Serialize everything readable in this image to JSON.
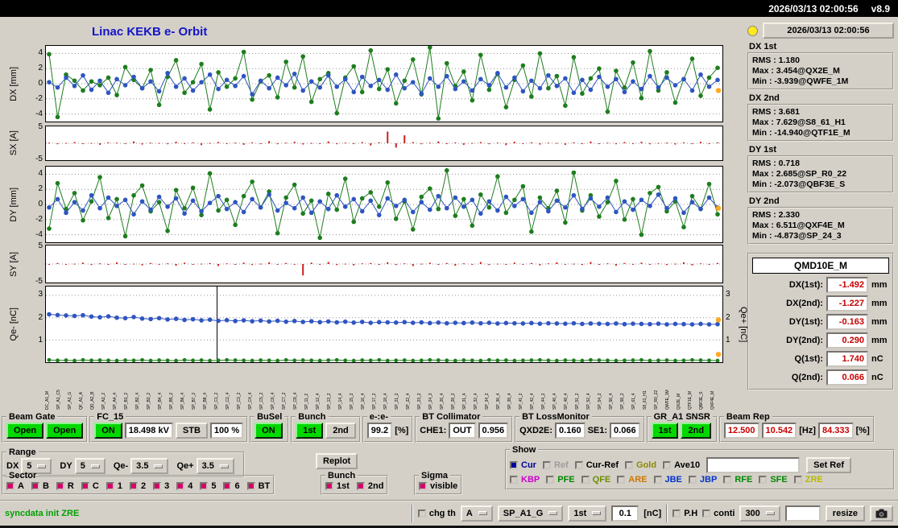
{
  "colors": {
    "green_btn": "#00d800",
    "magenta_check": "#d6006a",
    "value_red": "#c80000",
    "title_blue": "#1414c8",
    "status_green": "#00a000",
    "indicator_yellow": "#ffe81e"
  },
  "titlebar": {
    "datetime": "2026/03/13 02:00:56",
    "version": "v8.9"
  },
  "header": {
    "title": "Linac KEKB e- Orbit",
    "timestamp": "2026/03/13 02:00:56"
  },
  "stats_boxes": [
    {
      "title": "DX 1st",
      "lines": [
        "RMS : 1.180",
        "Max : 3.454@QX2E_M",
        "Min : -3.939@QWFE_1M"
      ]
    },
    {
      "title": "DX 2nd",
      "lines": [
        "RMS : 3.681",
        "Max : 7.629@S8_61_H1",
        "Min : -14.940@QTF1E_M"
      ]
    },
    {
      "title": "DY 1st",
      "lines": [
        "RMS : 0.718",
        "Max : 2.685@SP_R0_22",
        "Min : -2.073@QBF3E_S"
      ]
    },
    {
      "title": "DY 2nd",
      "lines": [
        "RMS : 2.330",
        "Max : 6.511@QXF4E_M",
        "Min : -4.873@SP_24_3"
      ]
    }
  ],
  "monitor": {
    "name": "QMD10E_M",
    "rows": [
      {
        "label": "DX(1st):",
        "value": "-1.492",
        "unit": "mm"
      },
      {
        "label": "DX(2nd):",
        "value": "-1.227",
        "unit": "mm"
      },
      {
        "label": "DY(1st):",
        "value": "-0.163",
        "unit": "mm"
      },
      {
        "label": "DY(2nd):",
        "value": "0.290",
        "unit": "mm"
      },
      {
        "label": "Q(1st):",
        "value": "1.740",
        "unit": "nC"
      },
      {
        "label": "Q(2nd):",
        "value": "0.066",
        "unit": "nC"
      }
    ]
  },
  "groups": {
    "beam_gate": {
      "title": "Beam Gate",
      "buttons": [
        "Open",
        "Open"
      ]
    },
    "fc15": {
      "title": "FC_15",
      "on": "ON",
      "kv": "18.498 kV",
      "stb": "STB",
      "pct": "100 %"
    },
    "busel": {
      "title": "BuSel",
      "on": "ON"
    },
    "bunch_top": {
      "title": "Bunch",
      "b1": "1st",
      "b2": "2nd"
    },
    "ee": {
      "title": "e-:e-",
      "value": "99.2",
      "unit": "[%]"
    },
    "bt_coll": {
      "title": "BT Collimator",
      "label": "CHE1:",
      "state": "OUT",
      "value": "0.956"
    },
    "bt_loss": {
      "title": "BT LossMonitor",
      "l1": "QXD2E:",
      "v1": "0.160",
      "l2": "SE1:",
      "v2": "0.066"
    },
    "gr_snsr": {
      "title": "GR_A1 SNSR",
      "b1": "1st",
      "b2": "2nd"
    },
    "beam_rep": {
      "title": "Beam Rep",
      "v1": "12.500",
      "v2": "10.542",
      "u1": "[Hz]",
      "v3": "84.333",
      "u2": "[%]"
    }
  },
  "range": {
    "title": "Range",
    "items": [
      {
        "label": "DX",
        "value": "5"
      },
      {
        "label": "DY",
        "value": "5"
      },
      {
        "label": "Qe-",
        "value": "3.5"
      },
      {
        "label": "Qe+",
        "value": "3.5"
      }
    ],
    "replot": "Replot"
  },
  "show": {
    "title": "Show",
    "set_ref": "Set Ref",
    "row1": [
      {
        "label": "Cur",
        "color": "#00009c",
        "ind": "#00009c"
      },
      {
        "label": "Ref",
        "color": "#9c9c9c",
        "ind": "#d4d0c8"
      },
      {
        "label": "Cur-Ref",
        "color": "#000000",
        "ind": "#d4d0c8"
      },
      {
        "label": "Gold",
        "color": "#8b8b00",
        "ind": "#d4d0c8"
      },
      {
        "label": "Ave10",
        "color": "#000000",
        "ind": "#d4d0c8"
      }
    ],
    "row2": [
      {
        "label": "KBP",
        "color": "#cc00cc"
      },
      {
        "label": "PFE",
        "color": "#008800"
      },
      {
        "label": "QFE",
        "color": "#6b8e00"
      },
      {
        "label": "ARE",
        "color": "#cc7700"
      },
      {
        "label": "JBE",
        "color": "#0033cc"
      },
      {
        "label": "JBP",
        "color": "#0033cc"
      },
      {
        "label": "RFE",
        "color": "#008800"
      },
      {
        "label": "SFE",
        "color": "#008800"
      },
      {
        "label": "ZRE",
        "color": "#b8b800"
      }
    ]
  },
  "sector": {
    "title": "Sector",
    "items": [
      "A",
      "B",
      "R",
      "C",
      "1",
      "2",
      "3",
      "4",
      "5",
      "6",
      "BT"
    ]
  },
  "bunch_bottom": {
    "title": "Bunch",
    "items": [
      "1st",
      "2nd"
    ]
  },
  "sigma": {
    "title": "Sigma",
    "items": [
      "visible"
    ]
  },
  "statusbar": {
    "message": "syncdata init ZRE",
    "chg_th": "chg th",
    "sel1": "A",
    "sel2": "SP_A1_G",
    "sel3": "1st",
    "th_value": "0.1",
    "th_unit": "[nC]",
    "ph": "P.H",
    "conti": "conti",
    "sel4": "300",
    "resize": "resize"
  },
  "chart_data": [
    {
      "name": "dx",
      "type": "line-scatter",
      "ylabel": "DX [mm]",
      "ylim": [
        -5,
        5
      ],
      "yticks": [
        4,
        2,
        0,
        -2,
        -4
      ],
      "grid": [
        4,
        2,
        0,
        -2,
        -4
      ],
      "series": [
        {
          "name": "2nd",
          "color": "#1e7d1e",
          "line": true,
          "r": 2.8,
          "values": [
            3.9,
            -4.4,
            1.2,
            0.4,
            -0.9,
            0.3,
            -0.2,
            0.8,
            -1.5,
            2.2,
            0.5,
            -0.6,
            1.8,
            -2.8,
            0.9,
            3.1,
            -1.2,
            0.2,
            2.6,
            -3.4,
            1.5,
            -0.4,
            0.7,
            4.2,
            -2.1,
            0.3,
            1.1,
            -1.8,
            2.9,
            -0.5,
            3.6,
            -2.4,
            0.6,
            1.4,
            -3.9,
            0.8,
            2.3,
            -1.1,
            4.4,
            -0.7,
            1.9,
            -2.6,
            0.4,
            3.2,
            -1.4,
            4.8,
            -4.6,
            2.7,
            -0.3,
            1.6,
            -2.2,
            3.8,
            -0.8,
            1.3,
            -3.1,
            0.5,
            2.4,
            -1.7,
            4.0,
            -0.6,
            1.0,
            -2.9,
            3.5,
            -1.3,
            0.7,
            2.0,
            -3.7,
            1.7,
            -0.5,
            2.8,
            -1.9,
            4.3,
            -0.9,
            1.5,
            -2.5,
            0.6,
            3.3,
            -1.6,
            0.8,
            2.1
          ]
        },
        {
          "name": "1st",
          "color": "#2f55c0",
          "line": true,
          "r": 2.8,
          "values": [
            0.2,
            -0.5,
            0.8,
            -0.3,
            1.1,
            -0.8,
            0.4,
            -1.2,
            0.6,
            -0.2,
            0.9,
            -0.6,
            0.3,
            -1.0,
            1.4,
            -0.4,
            0.7,
            -0.9,
            0.2,
            1.2,
            -0.7,
            0.5,
            -0.3,
            1.0,
            -1.4,
            0.4,
            -0.6,
            0.8,
            -0.2,
            1.3,
            -0.9,
            0.3,
            -0.5,
            1.1,
            -0.4,
            0.6,
            -1.1,
            0.9,
            -0.3,
            0.5,
            -0.8,
            1.2,
            -0.6,
            0.2,
            -1.3,
            0.7,
            -0.4,
            1.0,
            -0.7,
            0.3,
            -0.9,
            0.6,
            -0.2,
            1.4,
            -0.5,
            0.8,
            -1.0,
            0.4,
            -0.6,
            1.1,
            -0.3,
            0.7,
            -1.2,
            0.5,
            -0.8,
            0.9,
            -0.4,
            0.6,
            -1.1,
            0.3,
            -0.7,
            1.0,
            -0.5,
            0.8,
            -0.2,
            0.6,
            -0.9,
            1.2,
            -0.4,
            0.5
          ]
        }
      ],
      "end_markers": [
        -0.9
      ],
      "end_color": "#ffa81e"
    },
    {
      "name": "sx",
      "type": "bars",
      "ylabel": "SX [A]",
      "ylim": [
        -5.5,
        5.5
      ],
      "yticks": [
        5,
        -5
      ],
      "grid": [
        0
      ],
      "series": [
        {
          "name": "steering",
          "color": "#cc2020",
          "bars": true,
          "values": [
            0.2,
            -0.3,
            0.1,
            0.4,
            -0.2,
            0.1,
            -0.5,
            0.3,
            0.2,
            -0.1,
            0.6,
            -0.4,
            0.2,
            0.1,
            -0.3,
            0.5,
            -0.2,
            0.3,
            -0.6,
            0.1,
            0.4,
            -0.2,
            0.2,
            -0.5,
            0.3,
            -0.1,
            0.7,
            -0.3,
            0.2,
            0.5,
            -0.4,
            0.1,
            -0.2,
            0.6,
            -0.3,
            0.2,
            -0.1,
            0.4,
            -0.7,
            0.3,
            3.8,
            -1.4,
            2.6,
            0.4,
            -0.3,
            0.2,
            0.6,
            -0.2,
            0.3,
            -0.5,
            0.1,
            0.4,
            -0.3,
            0.2,
            -0.6,
            0.5,
            -0.1,
            0.3,
            -0.4,
            0.2,
            0.1,
            -0.5,
            0.3,
            -0.2,
            0.6,
            -0.1,
            0.2,
            -0.3,
            0.4,
            -0.2,
            0.5,
            -0.3,
            0.1,
            0.2,
            -0.4,
            0.3,
            -0.1,
            0.5,
            -0.2,
            0.3
          ]
        }
      ]
    },
    {
      "name": "dy",
      "type": "line-scatter",
      "ylabel": "DY [mm]",
      "ylim": [
        -5,
        5
      ],
      "yticks": [
        4,
        2,
        0,
        -2,
        -4
      ],
      "grid": [
        4,
        2,
        0,
        -2,
        -4
      ],
      "series": [
        {
          "name": "2nd",
          "color": "#1e7d1e",
          "line": true,
          "r": 2.8,
          "values": [
            -3.2,
            2.8,
            -0.6,
            1.5,
            -2.1,
            0.4,
            3.6,
            -1.8,
            0.7,
            -4.2,
            1.2,
            2.5,
            -0.9,
            0.3,
            -3.5,
            1.9,
            -0.5,
            2.2,
            -1.4,
            4.1,
            -0.8,
            0.6,
            -2.7,
            1.1,
            3.0,
            -0.4,
            1.7,
            -3.8,
            0.9,
            2.6,
            -1.2,
            0.5,
            -4.4,
            1.4,
            -0.7,
            3.4,
            -2.3,
            0.8,
            1.6,
            -0.3,
            2.9,
            -1.9,
            0.4,
            -3.3,
            1.0,
            2.1,
            -0.6,
            4.5,
            -1.5,
            0.7,
            -2.8,
            1.3,
            -0.4,
            3.7,
            -1.1,
            0.6,
            2.4,
            -3.6,
            0.9,
            -0.5,
            1.8,
            -2.4,
            4.2,
            -0.8,
            1.2,
            -1.6,
            0.3,
            3.1,
            -2.0,
            0.7,
            -4.0,
            1.5,
            2.3,
            -0.9,
            0.4,
            -3.0,
            1.1,
            -0.6,
            2.7,
            -1.3
          ]
        },
        {
          "name": "1st",
          "color": "#2f55c0",
          "line": true,
          "r": 2.8,
          "values": [
            -0.4,
            0.7,
            -1.1,
            0.3,
            -0.8,
            1.2,
            -0.5,
            0.9,
            -0.2,
            0.6,
            -1.3,
            0.4,
            -0.7,
            1.0,
            -0.3,
            0.8,
            -1.2,
            0.5,
            -0.9,
            0.2,
            1.1,
            -0.6,
            0.3,
            -1.0,
            0.7,
            -0.4,
            1.3,
            -0.8,
            0.2,
            -0.5,
            0.9,
            -1.1,
            0.4,
            -0.6,
            1.2,
            -0.3,
            0.7,
            -0.9,
            0.5,
            -1.4,
            0.8,
            -0.2,
            0.6,
            -1.0,
            0.3,
            -0.7,
            1.1,
            -0.5,
            0.9,
            -0.3,
            0.6,
            -1.2,
            0.4,
            -0.8,
            1.0,
            -0.2,
            0.7,
            -1.1,
            0.3,
            -0.9,
            0.5,
            -0.4,
            1.2,
            -0.6,
            0.8,
            -0.3,
            0.9,
            -1.0,
            0.4,
            -0.7,
            0.6,
            -0.2,
            1.3,
            -0.5,
            0.8,
            -1.1,
            0.3,
            -0.6,
            0.9,
            -0.4
          ]
        }
      ],
      "end_markers": [
        -0.5
      ],
      "end_color": "#ffa81e"
    },
    {
      "name": "sy",
      "type": "bars",
      "ylabel": "SY [A]",
      "ylim": [
        -5.5,
        5.5
      ],
      "yticks": [
        5,
        -5
      ],
      "grid": [
        0
      ],
      "series": [
        {
          "name": "steering",
          "color": "#cc2020",
          "bars": true,
          "values": [
            -0.1,
            0.3,
            -0.2,
            0.1,
            0.4,
            -0.3,
            0.2,
            -0.1,
            0.5,
            -0.2,
            0.1,
            -0.4,
            0.3,
            -0.1,
            0.2,
            -0.5,
            0.4,
            -0.2,
            0.1,
            0.3,
            -0.6,
            0.2,
            -0.1,
            0.4,
            -0.3,
            0.1,
            0.5,
            -0.2,
            0.3,
            -0.1,
            -3.4,
            0.4,
            -0.2,
            0.6,
            -0.3,
            0.1,
            -0.4,
            0.2,
            0.3,
            -0.1,
            0.5,
            -0.3,
            0.2,
            -0.6,
            0.1,
            0.4,
            -0.2,
            0.3,
            -0.5,
            0.2,
            -0.1,
            0.6,
            -0.3,
            0.1,
            -0.2,
            0.4,
            -0.1,
            0.3,
            -0.4,
            0.2,
            0.5,
            -0.2,
            0.1,
            -0.3,
            0.6,
            -0.1,
            0.2,
            -0.5,
            0.3,
            -0.2,
            0.4,
            -0.1,
            0.2,
            -0.3,
            0.1,
            0.5,
            -0.4,
            0.2,
            -0.1,
            0.3
          ]
        }
      ]
    },
    {
      "name": "charge",
      "type": "line-scatter",
      "ylabel": "Qe- [nC]",
      "ylabel_right": "Qe+ [nC]",
      "ylim": [
        0,
        3.4
      ],
      "yticks": [
        3,
        2,
        1
      ],
      "yticks_right": [
        3,
        2,
        1
      ],
      "grid": [
        3,
        2,
        1
      ],
      "vline_frac": 0.253,
      "series": [
        {
          "name": "Qe-",
          "color": "#2f55c0",
          "line": true,
          "r": 2.8,
          "values": [
            2.15,
            2.12,
            2.1,
            2.08,
            2.11,
            2.05,
            2.02,
            2.06,
            2.0,
            1.98,
            2.03,
            1.96,
            1.94,
            1.98,
            1.92,
            1.95,
            1.9,
            1.93,
            1.88,
            1.91,
            1.86,
            1.89,
            1.85,
            1.88,
            1.84,
            1.87,
            1.83,
            1.86,
            1.82,
            1.85,
            1.81,
            1.84,
            1.8,
            1.83,
            1.79,
            1.82,
            1.78,
            1.81,
            1.77,
            1.8,
            1.79,
            1.78,
            1.8,
            1.77,
            1.79,
            1.76,
            1.78,
            1.75,
            1.77,
            1.76,
            1.78,
            1.75,
            1.77,
            1.74,
            1.76,
            1.75,
            1.74,
            1.76,
            1.73,
            1.75,
            1.74,
            1.73,
            1.75,
            1.72,
            1.74,
            1.73,
            1.72,
            1.74,
            1.71,
            1.73,
            1.72,
            1.71,
            1.73,
            1.7,
            1.72,
            1.71,
            1.7,
            1.72,
            1.7,
            1.71
          ]
        },
        {
          "name": "Qe+",
          "color": "#1e7d1e",
          "line": true,
          "r": 2.4,
          "values": [
            0.1,
            0.08,
            0.09,
            0.07,
            0.1,
            0.08,
            0.09,
            0.08,
            0.07,
            0.09,
            0.08,
            0.1,
            0.07,
            0.09,
            0.08,
            0.07,
            0.1,
            0.08,
            0.09,
            0.07,
            0.08,
            0.1,
            0.09,
            0.08,
            0.07,
            0.09,
            0.08,
            0.07,
            0.1,
            0.08,
            0.09,
            0.08,
            0.07,
            0.09,
            0.1,
            0.08,
            0.07,
            0.09,
            0.08,
            0.1,
            0.07,
            0.08,
            0.09,
            0.07,
            0.08,
            0.1,
            0.09,
            0.08,
            0.07,
            0.09,
            0.08,
            0.07,
            0.1,
            0.08,
            0.09,
            0.07,
            0.08,
            0.09,
            0.1,
            0.08,
            0.07,
            0.09,
            0.08,
            0.07,
            0.1,
            0.09,
            0.08,
            0.07,
            0.08,
            0.09,
            0.1,
            0.07,
            0.08,
            0.09,
            0.07,
            0.08,
            0.1,
            0.09,
            0.08,
            0.07
          ]
        }
      ],
      "end_markers": [
        1.9,
        0.35
      ],
      "end_color": "#ffa81e"
    }
  ],
  "xlabels": [
    "DC_A1_M",
    "SP_A1_C5",
    "SP_A1_G",
    "QF_A1_A",
    "QD_A2_B",
    "SP_A3_2",
    "SP_A4_4",
    "SP_B1_2",
    "SP_B2_4",
    "SP_B3_2",
    "SP_B4_4",
    "SP_B5_2",
    "SP_B6_4",
    "SP_B7_2",
    "SP_B8_4",
    "SP_C1_2",
    "SP_C2_4",
    "SP_C3_2",
    "SP_C4_4",
    "SP_C5_2",
    "SP_C6_4",
    "SP_C7_2",
    "SP_C8_4",
    "SP_11_2",
    "SP_12_4",
    "SP_13_2",
    "SP_14_4",
    "SP_15_2",
    "SP_16_4",
    "SP_17_2",
    "SP_18_4",
    "SP_21_2",
    "SP_22_4",
    "SP_23_2",
    "SP_24_3",
    "SP_26_4",
    "SP_28_2",
    "SP_31_4",
    "SP_32_4",
    "SP_34_2",
    "SP_36_4",
    "SP_38_4",
    "SP_41_2",
    "SP_42_4",
    "SP_44_2",
    "SP_46_4",
    "SP_48_4",
    "SP_51_2",
    "SP_52_4",
    "SP_54_2",
    "SP_56_4",
    "SP_58_2",
    "SP_61_4",
    "S8_61_H1",
    "SP_R0_22",
    "QWFE_1M",
    "QX2E_M",
    "QTF1E_M",
    "QBF3E_S",
    "QXF4E_M"
  ]
}
